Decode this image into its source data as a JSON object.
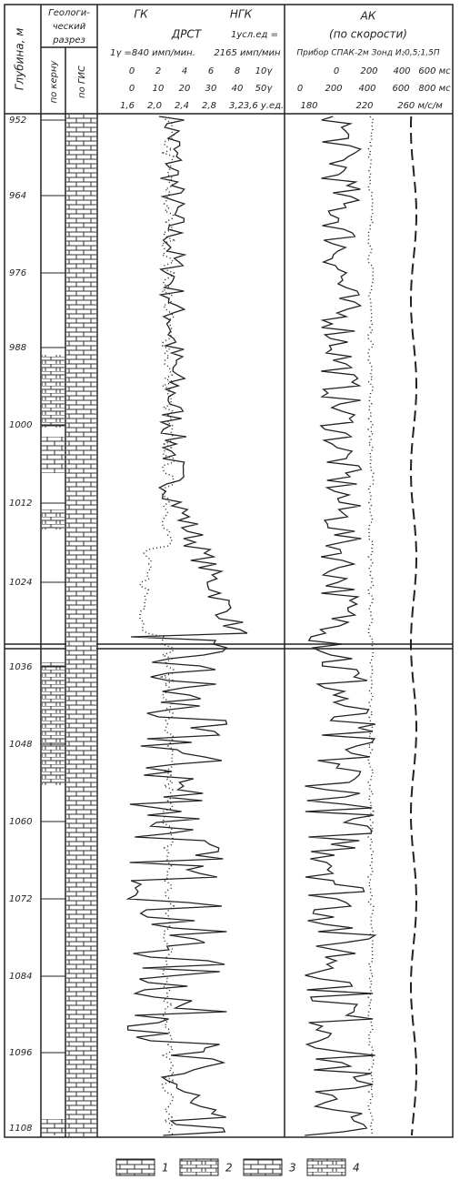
{
  "header": {
    "depth_label": "Глубина, м",
    "geology": [
      "Геологи-",
      "ческий",
      "разрез"
    ],
    "by_core": "по керну",
    "by_gis": "по ГИС",
    "gk": "ГК",
    "ngk": "НГК",
    "drst": "ДРСТ",
    "gk_unit": "1γ =840 имп/мин.",
    "ngk_unit": [
      "1усл.ед =",
      "2165 имп/мин"
    ],
    "ak": "АК",
    "ak_sub": "(по скорости)",
    "ak_device": "Прибор СПАК-2м Зонд И₂0,5;1,5П",
    "gk_scale": [
      "0",
      "2",
      "4",
      "6",
      "8",
      "10γ"
    ],
    "ngk_scale": [
      "0",
      "10",
      "20",
      "30",
      "40",
      "50γ"
    ],
    "drst_scale": [
      "1,6",
      "2,0",
      "2,4",
      "2,8",
      "3,2",
      "3,6 у.ед."
    ],
    "ak_scale_1": [
      "0",
      "200",
      "400",
      "600 мс"
    ],
    "ak_scale_2": [
      "0",
      "200",
      "400",
      "600",
      "800 мс"
    ],
    "ak_scale_3": [
      "180",
      "220",
      "260 м/с/м"
    ]
  },
  "depths": [
    "952",
    "964",
    "976",
    "988",
    "1000",
    "1012",
    "1024",
    "1036",
    "1048",
    "1060",
    "1072",
    "1084",
    "1096",
    "1108"
  ],
  "legend": [
    "1",
    "2",
    "3",
    "4"
  ]
}
